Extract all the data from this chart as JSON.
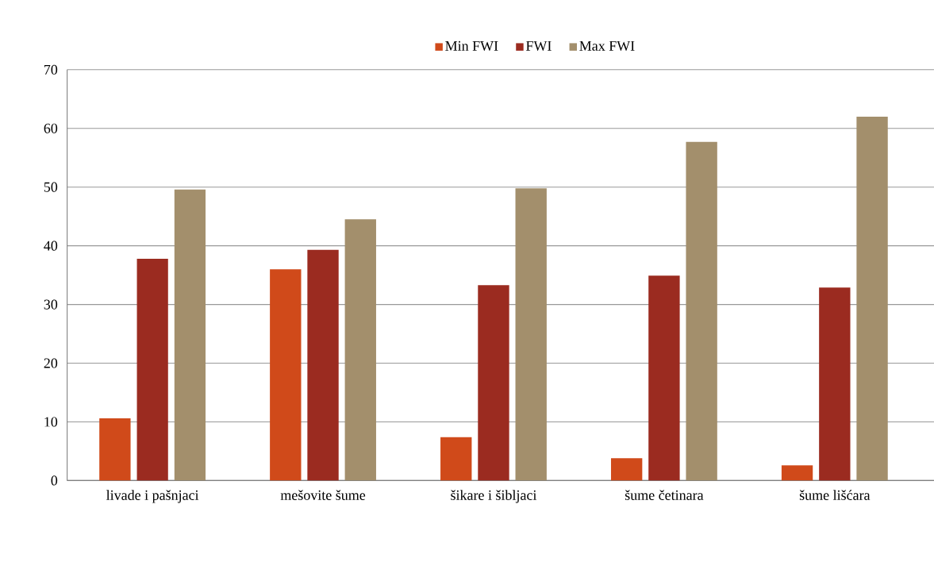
{
  "chart_data": {
    "type": "bar",
    "categories": [
      "livade i pašnjaci",
      "mešovite šume",
      "šikare i šibljaci",
      "šume četinara",
      "šume lišćara"
    ],
    "series": [
      {
        "name": "Min FWI",
        "color": "#d04a1a",
        "values": [
          10.6,
          36.0,
          7.4,
          3.8,
          2.6
        ]
      },
      {
        "name": "FWI",
        "color": "#9b2b20",
        "values": [
          37.8,
          39.3,
          33.3,
          34.9,
          32.9
        ]
      },
      {
        "name": "Max FWI",
        "color": "#a38f6c",
        "values": [
          49.6,
          44.5,
          49.8,
          57.7,
          62.0
        ]
      }
    ],
    "ylim": [
      0,
      70
    ],
    "yticks": [
      0,
      10,
      20,
      30,
      40,
      50,
      60,
      70
    ],
    "grid": "y",
    "legend": "top"
  }
}
